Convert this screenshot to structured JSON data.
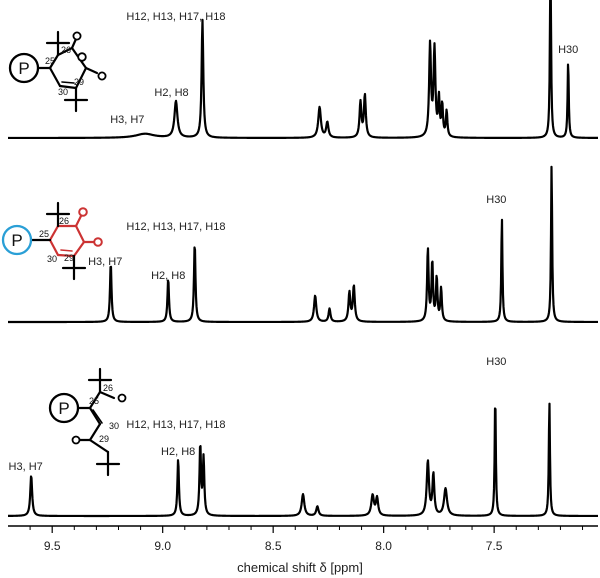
{
  "chart_data": {
    "type": "line",
    "xlabel": "chemical shift δ [ppm]",
    "x_reversed": true,
    "xlim": [
      9.7,
      7.03
    ],
    "x_ticks": [
      {
        "value": 9.5,
        "label": "9.5"
      },
      {
        "value": 9.0,
        "label": "9.0"
      },
      {
        "value": 8.5,
        "label": "8.5"
      },
      {
        "value": 8.0,
        "label": "8.0"
      },
      {
        "value": 7.5,
        "label": "7.5"
      }
    ],
    "grid": false,
    "legend": "none",
    "spectra": [
      {
        "trace_color": "#000000",
        "structure": {
          "type": "anhydride",
          "ring_color": "#000000",
          "p_circle_color": "#000000",
          "p_label": "P",
          "atom_numbers": [
            "26",
            "25",
            "30",
            "29"
          ]
        },
        "peaks": [
          {
            "shift": 9.08,
            "height": 0.035,
            "width": 0.05
          },
          {
            "shift": 8.94,
            "height": 0.31,
            "width": 0.008
          },
          {
            "shift": 8.82,
            "height": 1.0,
            "width": 0.0045
          },
          {
            "shift": 8.29,
            "height": 0.26,
            "width": 0.007
          },
          {
            "shift": 8.255,
            "height": 0.13,
            "width": 0.006
          },
          {
            "shift": 8.105,
            "height": 0.3,
            "width": 0.005
          },
          {
            "shift": 8.085,
            "height": 0.36,
            "width": 0.005
          },
          {
            "shift": 7.79,
            "height": 0.78,
            "width": 0.005
          },
          {
            "shift": 7.77,
            "height": 0.74,
            "width": 0.005
          },
          {
            "shift": 7.75,
            "height": 0.32,
            "width": 0.004
          },
          {
            "shift": 7.735,
            "height": 0.27,
            "width": 0.004
          },
          {
            "shift": 7.715,
            "height": 0.22,
            "width": 0.004
          },
          {
            "shift": 7.245,
            "height": 1.55,
            "width": 0.003
          },
          {
            "shift": 7.165,
            "height": 0.66,
            "width": 0.003
          }
        ],
        "labels": [
          {
            "text": "H12, H13, H17, H18",
            "shift": 8.94
          },
          {
            "text": "H2, H8",
            "shift": 8.96
          },
          {
            "text": "H3, H7",
            "shift": 9.16
          },
          {
            "text": "H30",
            "shift": 7.165
          }
        ]
      },
      {
        "trace_color": "#000000",
        "structure": {
          "type": "quinone",
          "ring_color": "#cc3333",
          "p_circle_color": "#2a9fd6",
          "p_label": "P",
          "atom_numbers": [
            "26",
            "25",
            "30",
            "29"
          ]
        },
        "peaks": [
          {
            "shift": 9.235,
            "height": 0.45,
            "width": 0.004
          },
          {
            "shift": 8.975,
            "height": 0.33,
            "width": 0.004
          },
          {
            "shift": 8.855,
            "height": 0.6,
            "width": 0.004
          },
          {
            "shift": 8.31,
            "height": 0.2,
            "width": 0.006
          },
          {
            "shift": 8.245,
            "height": 0.1,
            "width": 0.005
          },
          {
            "shift": 8.155,
            "height": 0.22,
            "width": 0.005
          },
          {
            "shift": 8.135,
            "height": 0.27,
            "width": 0.005
          },
          {
            "shift": 7.8,
            "height": 0.55,
            "width": 0.004
          },
          {
            "shift": 7.78,
            "height": 0.45,
            "width": 0.004
          },
          {
            "shift": 7.76,
            "height": 0.33,
            "width": 0.004
          },
          {
            "shift": 7.74,
            "height": 0.25,
            "width": 0.004
          },
          {
            "shift": 7.465,
            "height": 0.8,
            "width": 0.003
          },
          {
            "shift": 7.24,
            "height": 1.2,
            "width": 0.003
          }
        ],
        "labels": [
          {
            "text": "H12, H13, H17, H18",
            "shift": 8.94
          },
          {
            "text": "H2, H8",
            "shift": 8.975
          },
          {
            "text": "H3, H7",
            "shift": 9.26
          },
          {
            "text": "H30",
            "shift": 7.49
          }
        ]
      },
      {
        "trace_color": "#000000",
        "structure": {
          "type": "diketone",
          "ring_color": "#000000",
          "p_circle_color": "#000000",
          "p_label": "P",
          "atom_numbers": [
            "26",
            "25",
            "30",
            "29"
          ]
        },
        "peaks": [
          {
            "shift": 9.595,
            "height": 0.3,
            "width": 0.005
          },
          {
            "shift": 8.93,
            "height": 0.42,
            "width": 0.004
          },
          {
            "shift": 8.83,
            "height": 0.52,
            "width": 0.004
          },
          {
            "shift": 8.815,
            "height": 0.42,
            "width": 0.004
          },
          {
            "shift": 8.365,
            "height": 0.16,
            "width": 0.007
          },
          {
            "shift": 8.3,
            "height": 0.07,
            "width": 0.006
          },
          {
            "shift": 8.05,
            "height": 0.15,
            "width": 0.007
          },
          {
            "shift": 8.03,
            "height": 0.13,
            "width": 0.006
          },
          {
            "shift": 7.8,
            "height": 0.4,
            "width": 0.006
          },
          {
            "shift": 7.775,
            "height": 0.3,
            "width": 0.005
          },
          {
            "shift": 7.72,
            "height": 0.2,
            "width": 0.008
          },
          {
            "shift": 7.495,
            "height": 0.9,
            "width": 0.003
          },
          {
            "shift": 7.25,
            "height": 0.85,
            "width": 0.003
          }
        ],
        "labels": [
          {
            "text": "H12, H13, H17, H18",
            "shift": 8.94
          },
          {
            "text": "H2, H8",
            "shift": 8.93
          },
          {
            "text": "H3, H7",
            "shift": 9.62
          },
          {
            "text": "H30",
            "shift": 7.49
          }
        ]
      }
    ]
  }
}
